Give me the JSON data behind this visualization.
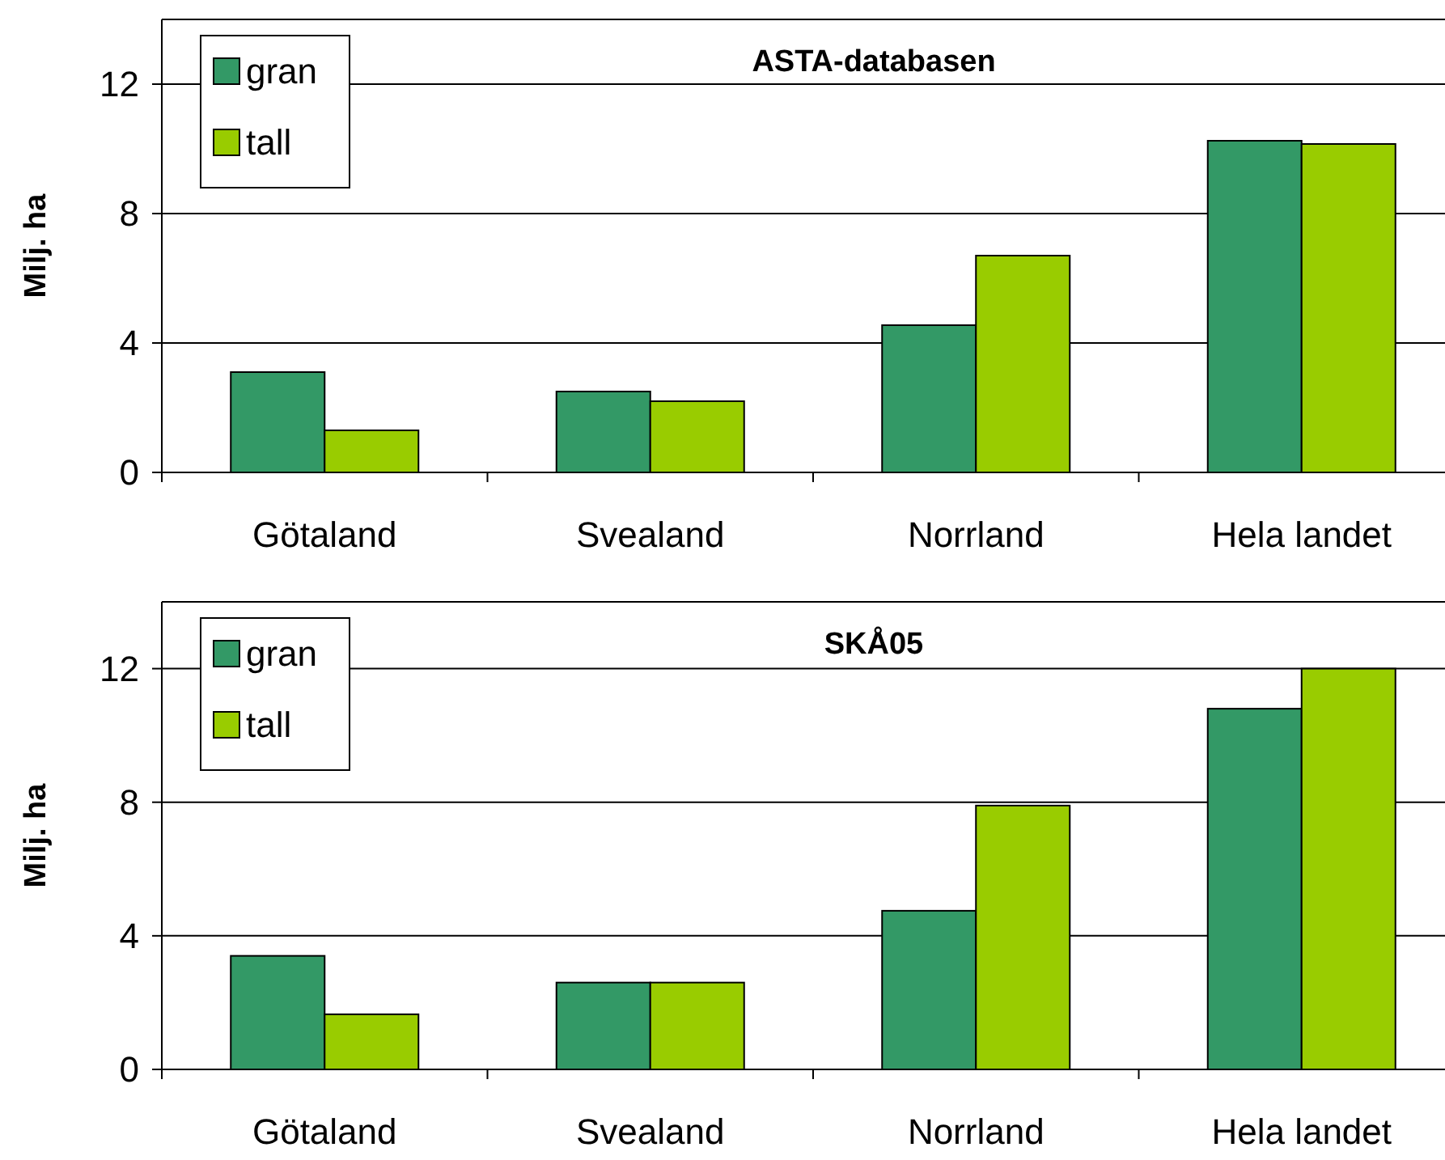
{
  "chart_data": [
    {
      "type": "bar",
      "title": "ASTA-databasen",
      "ylabel": "Milj. ha",
      "categories": [
        "Götaland",
        "Svealand",
        "Norrland",
        "Hela landet"
      ],
      "series": [
        {
          "name": "gran",
          "color": "#339966",
          "values": [
            3.1,
            2.5,
            4.55,
            10.25
          ]
        },
        {
          "name": "tall",
          "color": "#99cc00",
          "values": [
            1.3,
            2.2,
            6.7,
            10.15
          ]
        }
      ],
      "ylim": [
        0,
        14
      ],
      "yticks": [
        0,
        4,
        8,
        12
      ],
      "grid": "y",
      "legend": "top left"
    },
    {
      "type": "bar",
      "title": "SKÅ05",
      "ylabel": "Milj. ha",
      "categories": [
        "Götaland",
        "Svealand",
        "Norrland",
        "Hela landet"
      ],
      "series": [
        {
          "name": "gran",
          "color": "#339966",
          "values": [
            3.4,
            2.6,
            4.75,
            10.8
          ]
        },
        {
          "name": "tall",
          "color": "#99cc00",
          "values": [
            1.65,
            2.6,
            7.9,
            12.0
          ]
        }
      ],
      "ylim": [
        0,
        14
      ],
      "yticks": [
        0,
        4,
        8,
        12
      ],
      "grid": "y",
      "legend": "top left"
    }
  ]
}
